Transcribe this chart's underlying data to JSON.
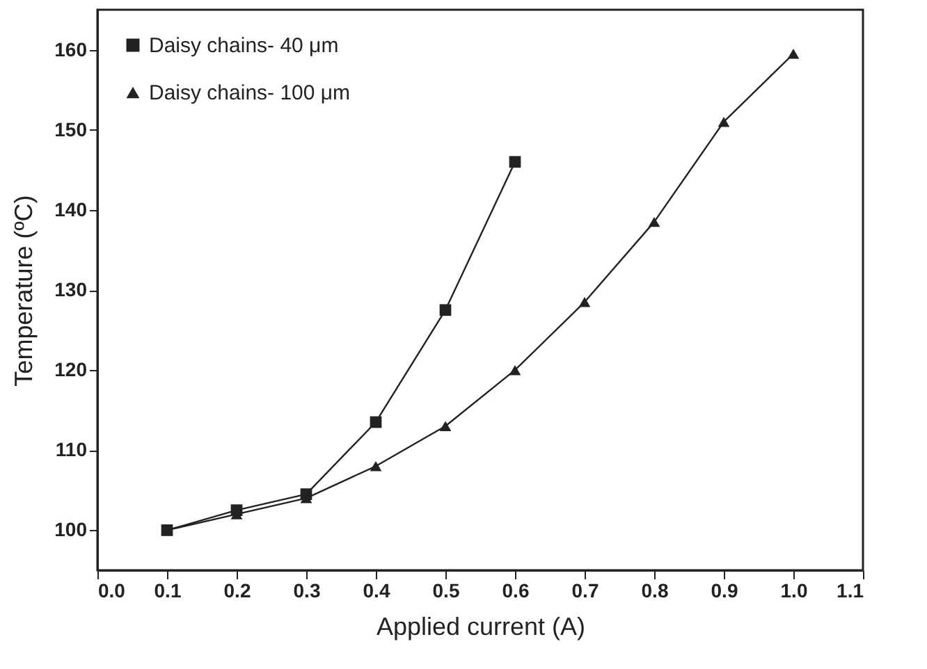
{
  "chart_data": {
    "type": "line",
    "xlabel": "Applied current (A)",
    "ylabel": "Temperature (ºC)",
    "xlim": [
      0.0,
      1.1
    ],
    "xticks": [
      {
        "value": 0,
        "label": "0.0"
      },
      0.1,
      0.2,
      0.3,
      0.4,
      0.5,
      0.6,
      0.7,
      0.8,
      0.9,
      {
        "value": 1,
        "label": "1.0"
      },
      1.1
    ],
    "ylim": [
      95,
      165
    ],
    "yticks": [
      100,
      110,
      120,
      130,
      140,
      150,
      160
    ],
    "grid": false,
    "legend": "top left",
    "series": [
      {
        "name": "Daisy chains-  40  μm",
        "color": "#222222",
        "marker": "square",
        "x": [
          0.1,
          0.2,
          0.3,
          0.4,
          0.5,
          0.6
        ],
        "values": [
          100,
          102.5,
          104.5,
          113.5,
          127.5,
          146
        ]
      },
      {
        "name": "Daisy chains- 100 μm",
        "color": "#222222",
        "marker": "triangle",
        "x": [
          0.1,
          0.2,
          0.3,
          0.4,
          0.5,
          0.6,
          0.7,
          0.8,
          0.9,
          1.0
        ],
        "values": [
          100,
          102,
          104,
          108,
          113,
          120,
          128.5,
          138.5,
          151,
          159.5
        ]
      }
    ]
  }
}
